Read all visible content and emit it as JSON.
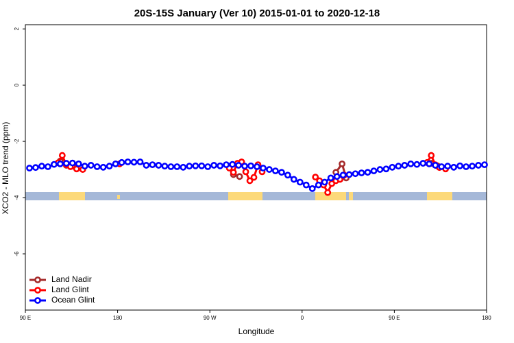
{
  "chart_data": {
    "type": "line",
    "title": "20S-15S January (Ver 10)   2015-01-01 to 2020-12-18",
    "x_label": "Longitude",
    "y_label": "XCO2 - MLO trend (ppm)",
    "xlim": [
      90,
      540
    ],
    "ylim": [
      -8,
      2.15
    ],
    "xticks": [
      {
        "value": 90,
        "label": "90 E"
      },
      180,
      {
        "value": 270,
        "label": "90 W"
      },
      {
        "value": 360,
        "label": "0"
      },
      {
        "value": 450,
        "label": "90 E"
      },
      {
        "value": 540,
        "label": "180"
      }
    ],
    "yticks": [
      -6,
      -4,
      -2,
      0,
      2
    ],
    "legend": "bottom-left",
    "series": [
      {
        "name": "Land Nadir",
        "color": "#a52a2a",
        "x": [
          124,
          130,
          136,
          200,
          293,
          299,
          350,
          393,
          399,
          403,
          450,
          486,
          492
        ],
        "values": [
          -2.7,
          -2.85,
          -2.88,
          null,
          -3.18,
          -3.25,
          null,
          -3.1,
          -2.8,
          -3.3,
          null,
          -2.78,
          -2.87
        ]
      },
      {
        "name": "Land Glint",
        "color": "#ff0000",
        "x": [
          122,
          126,
          130,
          134,
          140,
          146,
          160,
          182,
          240,
          289,
          293,
          297,
          301,
          305,
          309,
          313,
          317,
          321,
          350,
          373,
          377,
          381,
          385,
          389,
          393,
          397,
          401,
          450,
          482,
          486,
          490,
          494,
          500
        ],
        "values": [
          -2.76,
          -2.5,
          -2.83,
          -2.9,
          -2.98,
          -3.0,
          null,
          -2.8,
          null,
          -2.95,
          -3.1,
          -2.78,
          -2.73,
          -3.08,
          -3.4,
          -3.28,
          -2.83,
          -3.08,
          null,
          -3.27,
          -3.4,
          -3.55,
          -3.82,
          -3.5,
          -3.4,
          -3.35,
          -3.2,
          null,
          -2.75,
          -2.5,
          -2.83,
          -2.93,
          -2.98
        ]
      },
      {
        "name": "Ocean Glint",
        "color": "#0000ff",
        "x": [
          94,
          100,
          106,
          112,
          118,
          124,
          130,
          136,
          142,
          148,
          154,
          160,
          166,
          172,
          178,
          184,
          190,
          196,
          202,
          208,
          214,
          220,
          226,
          232,
          238,
          244,
          250,
          256,
          262,
          268,
          274,
          280,
          286,
          292,
          298,
          304,
          310,
          316,
          322,
          328,
          334,
          340,
          346,
          352,
          358,
          364,
          370,
          376,
          382,
          388,
          394,
          400,
          406,
          412,
          418,
          424,
          430,
          436,
          442,
          448,
          454,
          460,
          466,
          472,
          478,
          484,
          490,
          496,
          502,
          508,
          514,
          520,
          526,
          532,
          538
        ],
        "values": [
          -2.95,
          -2.93,
          -2.88,
          -2.9,
          -2.82,
          -2.8,
          -2.78,
          -2.77,
          -2.8,
          -2.88,
          -2.85,
          -2.9,
          -2.92,
          -2.88,
          -2.8,
          -2.75,
          -2.73,
          -2.74,
          -2.73,
          -2.85,
          -2.83,
          -2.85,
          -2.88,
          -2.9,
          -2.9,
          -2.92,
          -2.88,
          -2.87,
          -2.87,
          -2.9,
          -2.85,
          -2.87,
          -2.83,
          -2.82,
          -2.85,
          -2.88,
          -2.87,
          -2.9,
          -2.95,
          -3.0,
          -3.05,
          -3.1,
          -3.2,
          -3.35,
          -3.45,
          -3.55,
          -3.68,
          -3.55,
          -3.45,
          -3.3,
          -3.25,
          -3.2,
          -3.18,
          -3.15,
          -3.12,
          -3.1,
          -3.05,
          -3.0,
          -2.98,
          -2.92,
          -2.88,
          -2.85,
          -2.8,
          -2.82,
          -2.78,
          -2.8,
          -2.85,
          -2.9,
          -2.88,
          -2.92,
          -2.87,
          -2.9,
          -2.88,
          -2.85,
          -2.83
        ]
      }
    ]
  }
}
